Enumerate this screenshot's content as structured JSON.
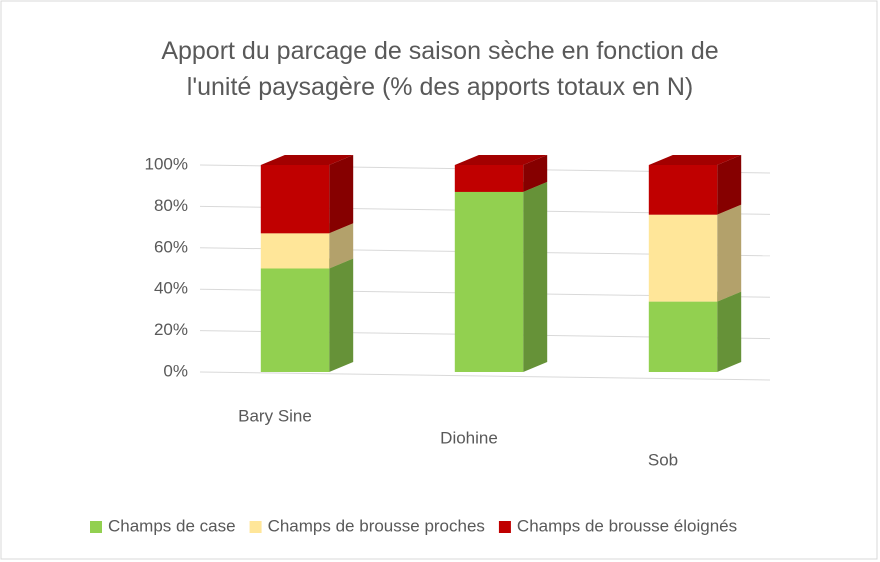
{
  "chart_data": {
    "type": "stacked_bar_3d",
    "title": "Apport du parcage de saison sèche en fonction de l'unité paysagère (% des apports totaux en N)",
    "categories": [
      "Bary Sine",
      "Diohine",
      "Sob"
    ],
    "series": [
      {
        "name": "Champs de case",
        "color": "#92d050",
        "values": [
          50,
          87,
          34
        ]
      },
      {
        "name": "Champs de brousse proches",
        "color": "#ffe699",
        "values": [
          17,
          0,
          42
        ]
      },
      {
        "name": "Champs de brousse éloignés",
        "color": "#c00000",
        "values": [
          33,
          13,
          24
        ]
      }
    ],
    "ylim": [
      0,
      100
    ],
    "yticks": [
      {
        "value": 0,
        "label": "0%"
      },
      {
        "value": 20,
        "label": "20%"
      },
      {
        "value": 40,
        "label": "40%"
      },
      {
        "value": 60,
        "label": "60%"
      },
      {
        "value": 80,
        "label": "80%"
      },
      {
        "value": 100,
        "label": "100%"
      }
    ],
    "grid": true,
    "legend": "bottom"
  }
}
